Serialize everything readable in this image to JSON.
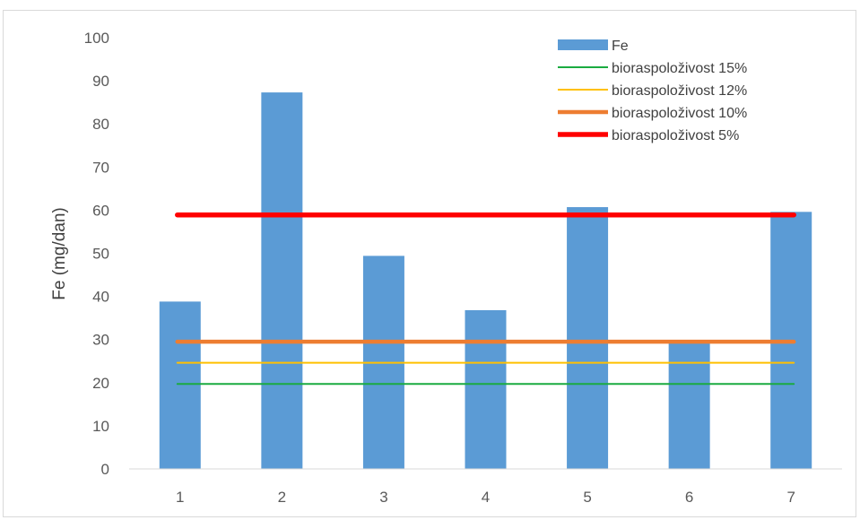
{
  "chart_data": {
    "type": "bar",
    "categories": [
      "1",
      "2",
      "3",
      "4",
      "5",
      "6",
      "7"
    ],
    "series": [
      {
        "name": "Fe",
        "type": "bar",
        "values": [
          38.8,
          87.3,
          49.4,
          36.8,
          60.7,
          29.2,
          59.6
        ],
        "color": "#5b9bd5"
      }
    ],
    "reference_lines": [
      {
        "name": "bioraspoloživost 15%",
        "value": 19.7,
        "color": "#1aab40",
        "width": 2
      },
      {
        "name": "bioraspoloživost 12%",
        "value": 24.6,
        "color": "#ffc000",
        "width": 2
      },
      {
        "name": "bioraspoloživost 10%",
        "value": 29.5,
        "color": "#ed7d31",
        "width": 4.5
      },
      {
        "name": "bioraspoloživost 5%",
        "value": 58.9,
        "color": "#ff0000",
        "width": 5.5
      }
    ],
    "ylabel": "Fe (mg/dan)",
    "xlabel": "",
    "title": "",
    "ylim": [
      0,
      100
    ],
    "yticks": [
      0,
      10,
      20,
      30,
      40,
      50,
      60,
      70,
      80,
      90,
      100
    ],
    "grid": false,
    "legend_position": "top-right"
  }
}
